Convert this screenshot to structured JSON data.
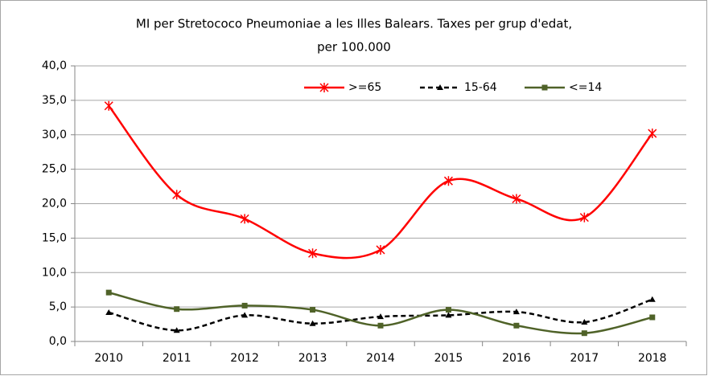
{
  "chart_data": {
    "type": "line",
    "title": [
      "MI per Stretococo Pneumoniae  a les Illes Balears.  Taxes per grup d'edat,",
      "per 100.000"
    ],
    "categories": [
      "2010",
      "2011",
      "2012",
      "2013",
      "2014",
      "2015",
      "2016",
      "2017",
      "2018"
    ],
    "series": [
      {
        "name": ">=65",
        "color": "#ff0000",
        "dash": false,
        "marker": "star",
        "values": [
          34.2,
          21.3,
          17.8,
          12.8,
          13.3,
          23.3,
          20.7,
          18.0,
          30.2
        ]
      },
      {
        "name": "15-64",
        "color": "#000000",
        "dash": true,
        "marker": "triangle",
        "values": [
          4.2,
          1.6,
          3.8,
          2.6,
          3.6,
          3.8,
          4.3,
          2.8,
          6.1
        ]
      },
      {
        "name": "<=14",
        "color": "#4f6228",
        "dash": false,
        "marker": "square",
        "values": [
          7.1,
          4.7,
          5.2,
          4.6,
          2.3,
          4.6,
          2.3,
          1.2,
          3.5
        ]
      }
    ],
    "ylim": [
      0,
      40
    ],
    "yticks": [
      {
        "value": 0,
        "label": "0,0"
      },
      {
        "value": 5,
        "label": "5,0"
      },
      {
        "value": 10,
        "label": "10,0"
      },
      {
        "value": 15,
        "label": "15,0"
      },
      {
        "value": 20,
        "label": "20,0"
      },
      {
        "value": 25,
        "label": "25,0"
      },
      {
        "value": 30,
        "label": "30,0"
      },
      {
        "value": 35,
        "label": "35,0"
      },
      {
        "value": 40,
        "label": "40,0"
      }
    ],
    "grid": true,
    "smooth": true,
    "legend": "top"
  }
}
